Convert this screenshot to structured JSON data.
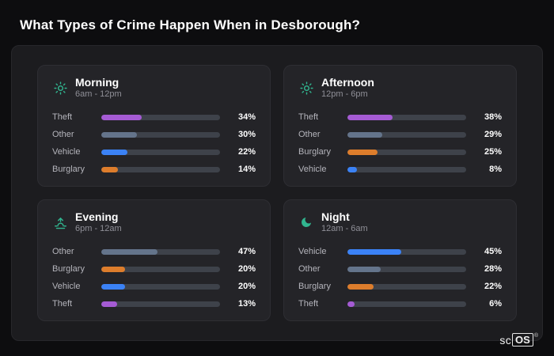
{
  "title": "What Types of Crime Happen When in Desborough?",
  "logo": {
    "prefix": "sc",
    "box": "OS",
    "reg": "®"
  },
  "colors": {
    "Theft": "#a55bd4",
    "Other": "#64748b",
    "Vehicle": "#3b82f6",
    "Burglary": "#dd7d2c",
    "icon_accent": "#31b58f",
    "bar_track": "#3e424a",
    "card_background": "#242428",
    "panel_background": "#1c1c1f",
    "page_background": "#0d0d0f"
  },
  "chart_data": [
    {
      "type": "bar",
      "title": "Morning",
      "subtitle": "6am - 12pm",
      "icon": "sun-rays-icon",
      "categories": [
        "Theft",
        "Other",
        "Vehicle",
        "Burglary"
      ],
      "values": [
        34,
        30,
        22,
        14
      ],
      "unit": "%",
      "xlim": [
        0,
        100
      ],
      "legend": "none",
      "grid": false
    },
    {
      "type": "bar",
      "title": "Afternoon",
      "subtitle": "12pm - 6pm",
      "icon": "sun-icon",
      "categories": [
        "Theft",
        "Other",
        "Burglary",
        "Vehicle"
      ],
      "values": [
        38,
        29,
        25,
        8
      ],
      "unit": "%",
      "xlim": [
        0,
        100
      ],
      "legend": "none",
      "grid": false
    },
    {
      "type": "bar",
      "title": "Evening",
      "subtitle": "6pm - 12am",
      "icon": "sunset-icon",
      "categories": [
        "Other",
        "Burglary",
        "Vehicle",
        "Theft"
      ],
      "values": [
        47,
        20,
        20,
        13
      ],
      "unit": "%",
      "xlim": [
        0,
        100
      ],
      "legend": "none",
      "grid": false
    },
    {
      "type": "bar",
      "title": "Night",
      "subtitle": "12am - 6am",
      "icon": "moon-icon",
      "categories": [
        "Vehicle",
        "Other",
        "Burglary",
        "Theft"
      ],
      "values": [
        45,
        28,
        22,
        6
      ],
      "unit": "%",
      "xlim": [
        0,
        100
      ],
      "legend": "none",
      "grid": false
    }
  ]
}
